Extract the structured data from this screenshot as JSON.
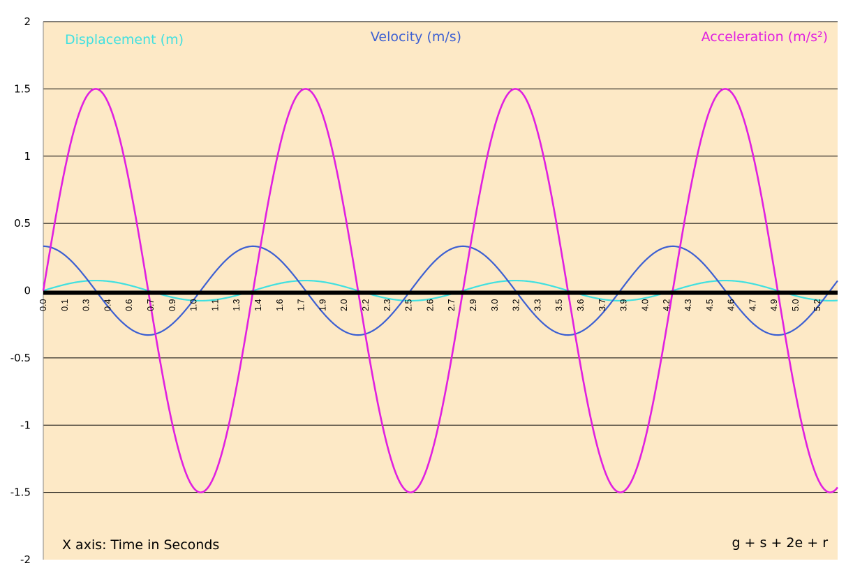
{
  "chart_data": {
    "type": "line",
    "xlim": [
      0.0,
      5.3
    ],
    "ylim": [
      -2,
      2
    ],
    "y_ticks": [
      "2",
      "1.5",
      "1",
      "0.5",
      "0",
      "-0.5",
      "-1",
      "-1.5",
      "-2"
    ],
    "y_tick_values": [
      2,
      1.5,
      1,
      0.5,
      0,
      -0.5,
      -1,
      -1.5,
      -2
    ],
    "x_tick_labels": [
      "0.0",
      "0.1",
      "0.3",
      "0.4",
      "0.6",
      "0.7",
      "0.9",
      "1.0",
      "1.1",
      "1.3",
      "1.4",
      "1.6",
      "1.7",
      "1.9",
      "2.0",
      "2.2",
      "2.3",
      "2.5",
      "2.6",
      "2.7",
      "2.9",
      "3.0",
      "3.2",
      "3.3",
      "3.5",
      "3.6",
      "3.7",
      "3.9",
      "4.0",
      "4.2",
      "4.3",
      "4.5",
      "4.6",
      "4.7",
      "4.9",
      "5.0",
      "5.2"
    ],
    "grid": true,
    "background_color": "#fde9c6",
    "series": [
      {
        "name": "Displacement (m)",
        "color": "#40e0e0",
        "amplitude": 0.075,
        "period": 1.4,
        "phase_shift": 0.0
      },
      {
        "name": "Velocity (m/s)",
        "color": "#3c5fd2",
        "amplitude": 0.33,
        "period": 1.4,
        "phase_shift": -0.35
      },
      {
        "name": "Acceleration (m/s²)",
        "color": "#e020e0",
        "amplitude": 1.5,
        "period": 1.4,
        "phase_shift": 0.0
      }
    ],
    "annotations": [
      {
        "text": "X axis: Time in Seconds",
        "position": "bottom-left"
      },
      {
        "text": "g + s + 2e + r",
        "position": "bottom-right"
      }
    ]
  }
}
